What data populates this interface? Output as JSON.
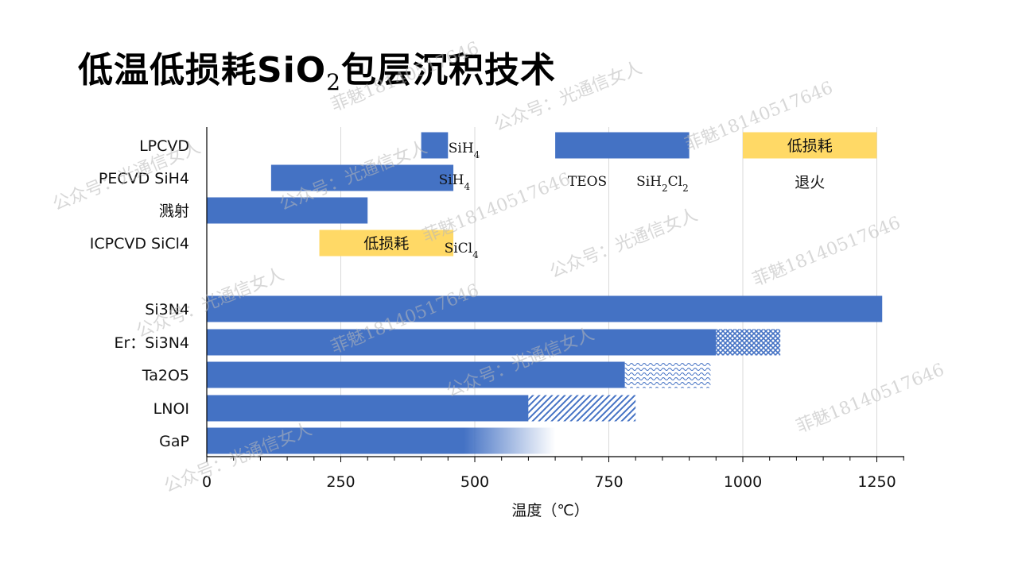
{
  "slide_title": "低温低损耗SiO",
  "slide_title_sub": "2",
  "slide_title_rest": "包层沉积技术",
  "colors": {
    "bar": "#4472C4",
    "highlight": "#FFD966",
    "axis": "#000000",
    "grid": "#d9d9d9"
  },
  "chart_data": {
    "type": "bar",
    "orientation": "horizontal",
    "xlabel": "温度（℃）",
    "xlim": [
      0,
      1300
    ],
    "xticks": [
      0,
      250,
      500,
      750,
      1000,
      1250
    ],
    "grid": true,
    "rows": [
      {
        "label": "LPCVD",
        "segments": [
          {
            "start": 400,
            "end": 450,
            "style": "solid"
          },
          {
            "start": 650,
            "end": 900,
            "style": "solid"
          },
          {
            "start": 1000,
            "end": 1250,
            "style": "highlight",
            "text": "低损耗"
          }
        ],
        "annotations": [
          {
            "x": 480,
            "text": "SiH",
            "sub": "4"
          },
          {
            "x": 710,
            "text": "TEOS",
            "sub": ""
          },
          {
            "x": 850,
            "text": "SiH",
            "sub": "2",
            "rest": "Cl",
            "sub2": "2"
          },
          {
            "x": 1125,
            "text": "退火",
            "sub": ""
          }
        ]
      },
      {
        "label": "PECVD  SiH4",
        "segments": [
          {
            "start": 120,
            "end": 460,
            "style": "solid"
          }
        ],
        "annotations": [
          {
            "x": 462,
            "text": "SiH",
            "sub": "4"
          }
        ]
      },
      {
        "label": "溅射",
        "segments": [
          {
            "start": 0,
            "end": 300,
            "style": "solid"
          }
        ],
        "annotations": []
      },
      {
        "label": "ICPCVD  SiCl4",
        "segments": [
          {
            "start": 210,
            "end": 460,
            "style": "highlight",
            "text": "低损耗"
          }
        ],
        "annotations": [
          {
            "x": 475,
            "text": "SiCl",
            "sub": "4"
          }
        ]
      },
      {
        "label": "Si3N4",
        "segments": [
          {
            "start": 0,
            "end": 1260,
            "style": "solid"
          }
        ],
        "annotations": []
      },
      {
        "label": "Er：Si3N4",
        "segments": [
          {
            "start": 0,
            "end": 950,
            "style": "solid"
          },
          {
            "start": 950,
            "end": 1070,
            "style": "crosshatch"
          }
        ],
        "annotations": []
      },
      {
        "label": "Ta2O5",
        "segments": [
          {
            "start": 0,
            "end": 780,
            "style": "solid"
          },
          {
            "start": 780,
            "end": 940,
            "style": "wave"
          }
        ],
        "annotations": []
      },
      {
        "label": "LNOI",
        "segments": [
          {
            "start": 0,
            "end": 600,
            "style": "solid"
          },
          {
            "start": 600,
            "end": 800,
            "style": "diagonal"
          }
        ],
        "annotations": []
      },
      {
        "label": "GaP",
        "segments": [
          {
            "start": 0,
            "end": 650,
            "style": "fade",
            "fade_from": 480
          }
        ],
        "annotations": []
      }
    ]
  },
  "watermarks": [
    "公众号：光通信女人",
    "菲魅18140517646",
    "公众号：光通信女人",
    "菲魅18140517646",
    "公众号：光通信女人",
    "菲魅18140517646",
    "公众号：光通信女人",
    "菲魅18140517646",
    "公众号：光通信女人",
    "菲魅18140517646",
    "公众号：光通信女人",
    "菲魅18140517646",
    "公众号：光通信女人"
  ]
}
